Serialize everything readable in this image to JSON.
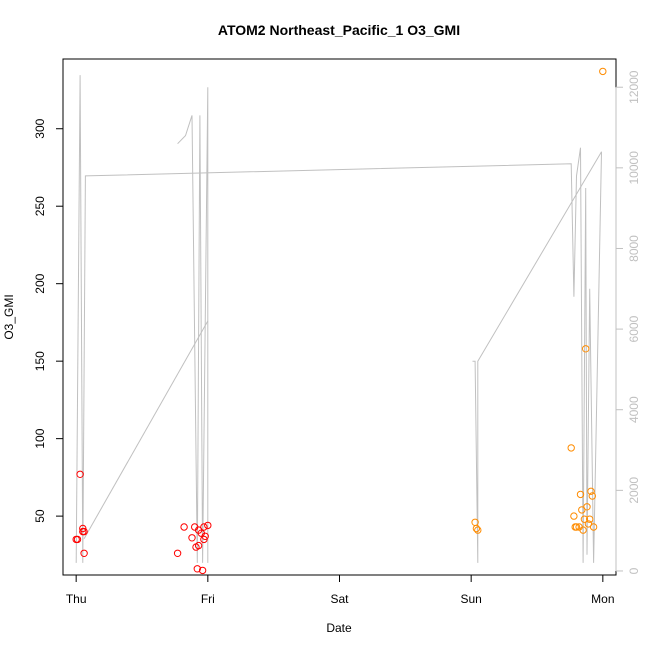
{
  "chart_data": {
    "type": "scatter",
    "title": "ATOM2 Northeast_Pacific_1 O3_GMI",
    "xlabel": "Date",
    "ylabel": "O3_GMI",
    "x_ticks": [
      "Thu",
      "Fri",
      "Sat",
      "Sun",
      "Mon"
    ],
    "xlim": [
      -0.1,
      4.1
    ],
    "ylim": [
      12,
      345
    ],
    "y_ticks": [
      50,
      100,
      150,
      200,
      250,
      300
    ],
    "y2lim": [
      -100,
      12700
    ],
    "y2_ticks": [
      0,
      2000,
      4000,
      6000,
      8000,
      10000,
      12000
    ],
    "y2_color": "#c0c0c0",
    "grid": false,
    "legend": "none",
    "series": [
      {
        "color": "#ff0000",
        "marker": "open-circle",
        "points": [
          [
            0.0,
            35
          ],
          [
            0.01,
            35
          ],
          [
            0.03,
            77
          ],
          [
            0.05,
            40
          ],
          [
            0.05,
            42
          ],
          [
            0.06,
            40
          ],
          [
            0.06,
            26
          ],
          [
            0.77,
            26
          ],
          [
            0.82,
            43
          ],
          [
            0.88,
            36
          ],
          [
            0.9,
            43
          ],
          [
            0.91,
            30
          ],
          [
            0.92,
            16
          ],
          [
            0.93,
            31
          ],
          [
            0.93,
            41
          ],
          [
            0.95,
            39
          ],
          [
            0.96,
            15
          ],
          [
            0.97,
            43
          ],
          [
            0.97,
            35
          ],
          [
            0.98,
            37
          ],
          [
            1.0,
            44
          ]
        ]
      },
      {
        "color": "#ff8c00",
        "marker": "open-circle",
        "points": [
          [
            3.03,
            46
          ],
          [
            3.04,
            42
          ],
          [
            3.05,
            41
          ],
          [
            3.76,
            94
          ],
          [
            3.78,
            50
          ],
          [
            3.79,
            43
          ],
          [
            3.8,
            43
          ],
          [
            3.82,
            43
          ],
          [
            3.83,
            64
          ],
          [
            3.84,
            54
          ],
          [
            3.85,
            41
          ],
          [
            3.86,
            48
          ],
          [
            3.87,
            158
          ],
          [
            3.88,
            56
          ],
          [
            3.89,
            45
          ],
          [
            3.9,
            48
          ],
          [
            3.91,
            66
          ],
          [
            3.92,
            63
          ],
          [
            3.93,
            43
          ],
          [
            4.0,
            337
          ]
        ]
      }
    ],
    "secondary_line": {
      "color": "#c0c0c0",
      "segments": [
        [
          [
            0.0,
            200
          ],
          [
            0.03,
            12300
          ],
          [
            0.05,
            200
          ],
          [
            0.07,
            9800
          ],
          [
            3.76,
            10100
          ],
          [
            3.78,
            6800
          ],
          [
            3.8,
            9800
          ],
          [
            3.83,
            10500
          ],
          [
            3.85,
            200
          ],
          [
            3.87,
            9500
          ],
          [
            3.88,
            400
          ],
          [
            3.9,
            7000
          ],
          [
            3.93,
            200
          ],
          [
            3.99,
            10400
          ]
        ],
        [
          [
            0.06,
            800
          ],
          [
            1.0,
            6200
          ]
        ],
        [
          [
            0.77,
            10600
          ],
          [
            0.83,
            10800
          ],
          [
            0.88,
            11300
          ],
          [
            0.92,
            200
          ],
          [
            0.94,
            11300
          ],
          [
            0.96,
            200
          ],
          [
            1.0,
            12000
          ],
          [
            1.0,
            200
          ]
        ],
        [
          [
            3.01,
            5200
          ],
          [
            3.03,
            5200
          ],
          [
            3.05,
            200
          ],
          [
            3.05,
            5200
          ],
          [
            3.99,
            10400
          ]
        ]
      ]
    }
  }
}
